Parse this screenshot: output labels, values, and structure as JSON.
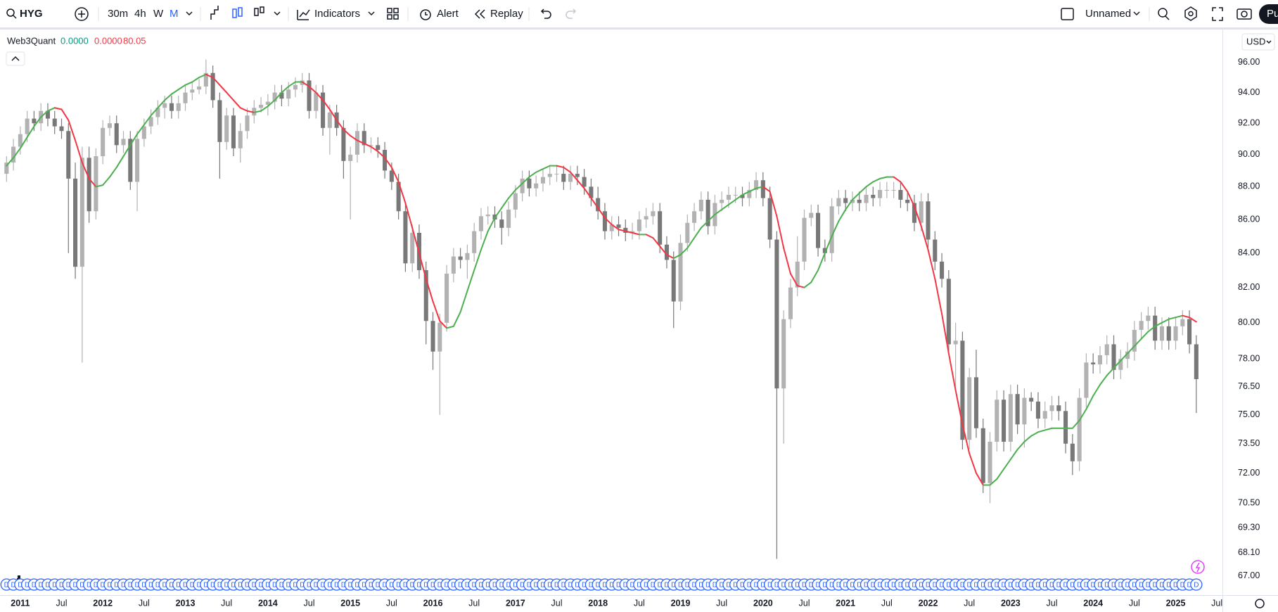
{
  "toolbar": {
    "symbol": "HYG",
    "intervals": [
      "30m",
      "4h",
      "W",
      "M"
    ],
    "indicators": "Indicators",
    "alert": "Alert",
    "replay": "Replay",
    "layout": "Unnamed",
    "publish": "Pu"
  },
  "currency": "USD",
  "chart_data": {
    "type": "candlestick",
    "log_scale": true,
    "up_color": "#b2b2b2",
    "down_color": "#787878",
    "ylim": [
      66.1,
      98.05
    ],
    "yticks": [
      {
        "value": 96,
        "label": "96.00"
      },
      {
        "value": 94,
        "label": "94.00"
      },
      {
        "value": 92,
        "label": "92.00"
      },
      {
        "value": 90,
        "label": "90.00"
      },
      {
        "value": 88,
        "label": "88.00"
      },
      {
        "value": 86,
        "label": "86.00"
      },
      {
        "value": 84,
        "label": "84.00"
      },
      {
        "value": 82,
        "label": "82.00"
      },
      {
        "value": 80,
        "label": "80.00"
      },
      {
        "value": 78,
        "label": "78.00"
      },
      {
        "value": 76.5,
        "label": "76.50"
      },
      {
        "value": 75,
        "label": "75.00"
      },
      {
        "value": 73.5,
        "label": "73.50"
      },
      {
        "value": 72,
        "label": "72.00"
      },
      {
        "value": 70.5,
        "label": "70.50"
      },
      {
        "value": 69.3,
        "label": "69.30"
      },
      {
        "value": 68.1,
        "label": "68.10"
      },
      {
        "value": 67,
        "label": "67.00"
      }
    ],
    "xlim": [
      -0.95,
      176.8
    ],
    "xticks": [
      {
        "value": 2,
        "label": "2011"
      },
      {
        "value": 8,
        "label": "Jul"
      },
      {
        "value": 14,
        "label": "2012"
      },
      {
        "value": 20,
        "label": "Jul"
      },
      {
        "value": 26,
        "label": "2013"
      },
      {
        "value": 32,
        "label": "Jul"
      },
      {
        "value": 38,
        "label": "2014"
      },
      {
        "value": 44,
        "label": "Jul"
      },
      {
        "value": 50,
        "label": "2015"
      },
      {
        "value": 56,
        "label": "Jul"
      },
      {
        "value": 62,
        "label": "2016"
      },
      {
        "value": 68,
        "label": "Jul"
      },
      {
        "value": 74,
        "label": "2017"
      },
      {
        "value": 80,
        "label": "Jul"
      },
      {
        "value": 86,
        "label": "2018"
      },
      {
        "value": 92,
        "label": "Jul"
      },
      {
        "value": 98,
        "label": "2019"
      },
      {
        "value": 104,
        "label": "Jul"
      },
      {
        "value": 110,
        "label": "2020"
      },
      {
        "value": 116,
        "label": "Jul"
      },
      {
        "value": 122,
        "label": "2021"
      },
      {
        "value": 128,
        "label": "Jul"
      },
      {
        "value": 134,
        "label": "2022"
      },
      {
        "value": 140,
        "label": "Jul"
      },
      {
        "value": 146,
        "label": "2023"
      },
      {
        "value": 152,
        "label": "Jul"
      },
      {
        "value": 158,
        "label": "2024"
      },
      {
        "value": 164,
        "label": "Jul"
      },
      {
        "value": 170,
        "label": "2025"
      },
      {
        "value": 176,
        "label": "Jul"
      }
    ],
    "candles": [
      [
        88.8,
        89.9,
        88.3,
        89.5
      ],
      [
        89.5,
        91.0,
        89.0,
        90.5
      ],
      [
        90.5,
        91.8,
        90.0,
        91.3
      ],
      [
        91.3,
        92.8,
        90.8,
        92.3
      ],
      [
        92.3,
        92.8,
        91.5,
        92.0
      ],
      [
        92.0,
        93.3,
        91.5,
        92.8
      ],
      [
        92.8,
        93.3,
        91.8,
        92.3
      ],
      [
        92.3,
        92.8,
        91.3,
        91.8
      ],
      [
        91.8,
        92.3,
        91.0,
        91.5
      ],
      [
        91.5,
        92.0,
        84.0,
        88.5
      ],
      [
        88.5,
        89.5,
        82.5,
        83.2
      ],
      [
        83.2,
        90.5,
        77.8,
        89.8
      ],
      [
        89.8,
        90.5,
        85.8,
        86.5
      ],
      [
        86.5,
        90.4,
        86.0,
        89.9
      ],
      [
        89.9,
        92.2,
        89.4,
        91.7
      ],
      [
        91.7,
        92.5,
        91.2,
        92.0
      ],
      [
        92.0,
        92.5,
        90.1,
        90.6
      ],
      [
        90.6,
        91.5,
        90.1,
        91.0
      ],
      [
        91.0,
        91.5,
        87.8,
        88.3
      ],
      [
        88.3,
        91.5,
        86.5,
        91.0
      ],
      [
        91.0,
        92.3,
        90.5,
        91.8
      ],
      [
        91.8,
        92.9,
        91.3,
        92.4
      ],
      [
        92.4,
        93.5,
        91.9,
        93.0
      ],
      [
        93.0,
        93.8,
        92.3,
        93.3
      ],
      [
        93.3,
        93.8,
        92.3,
        92.8
      ],
      [
        92.8,
        93.8,
        92.3,
        93.3
      ],
      [
        93.3,
        94.5,
        92.8,
        94.0
      ],
      [
        94.0,
        94.7,
        93.5,
        94.2
      ],
      [
        94.2,
        94.9,
        93.9,
        94.4
      ],
      [
        94.4,
        96.2,
        93.9,
        95.3
      ],
      [
        95.3,
        95.8,
        93.0,
        93.5
      ],
      [
        93.5,
        94.0,
        88.5,
        90.8
      ],
      [
        90.8,
        93.0,
        90.3,
        92.5
      ],
      [
        92.5,
        93.0,
        89.9,
        90.4
      ],
      [
        90.4,
        92.0,
        89.5,
        91.5
      ],
      [
        91.5,
        93.0,
        91.0,
        92.5
      ],
      [
        92.5,
        93.5,
        92.0,
        93.0
      ],
      [
        93.0,
        93.7,
        92.7,
        93.2
      ],
      [
        93.2,
        93.9,
        92.5,
        93.4
      ],
      [
        93.4,
        94.5,
        92.9,
        94.0
      ],
      [
        94.0,
        94.5,
        93.1,
        93.6
      ],
      [
        93.6,
        94.7,
        93.1,
        94.2
      ],
      [
        94.2,
        95.0,
        93.7,
        94.5
      ],
      [
        94.5,
        95.3,
        94.0,
        94.8
      ],
      [
        94.8,
        95.3,
        92.3,
        92.8
      ],
      [
        92.8,
        94.5,
        92.3,
        94.0
      ],
      [
        94.0,
        94.5,
        91.2,
        91.7
      ],
      [
        91.7,
        93.2,
        90.0,
        92.7
      ],
      [
        92.7,
        93.2,
        91.2,
        91.7
      ],
      [
        91.7,
        92.2,
        88.5,
        89.6
      ],
      [
        89.6,
        90.5,
        86.0,
        90.0
      ],
      [
        90.0,
        92.0,
        89.5,
        91.5
      ],
      [
        91.5,
        92.0,
        90.1,
        90.6
      ],
      [
        90.6,
        91.1,
        90.1,
        90.6
      ],
      [
        90.6,
        91.1,
        89.8,
        90.3
      ],
      [
        90.3,
        90.8,
        88.5,
        89.0
      ],
      [
        89.0,
        89.5,
        87.8,
        88.3
      ],
      [
        88.3,
        88.8,
        86.0,
        86.5
      ],
      [
        86.5,
        87.0,
        82.9,
        83.4
      ],
      [
        83.4,
        85.7,
        82.9,
        85.2
      ],
      [
        85.2,
        85.7,
        82.5,
        83.0
      ],
      [
        83.0,
        83.5,
        78.8,
        80.1
      ],
      [
        80.1,
        80.6,
        77.4,
        78.4
      ],
      [
        78.4,
        80.5,
        75.0,
        80.0
      ],
      [
        80.0,
        83.3,
        79.5,
        82.8
      ],
      [
        82.8,
        84.3,
        82.3,
        83.8
      ],
      [
        83.8,
        84.3,
        83.1,
        83.6
      ],
      [
        83.6,
        84.5,
        82.5,
        84.0
      ],
      [
        84.0,
        85.8,
        83.5,
        85.3
      ],
      [
        85.3,
        86.7,
        84.8,
        86.2
      ],
      [
        86.2,
        86.8,
        85.7,
        86.3
      ],
      [
        86.3,
        86.8,
        85.5,
        86.0
      ],
      [
        86.0,
        86.5,
        84.5,
        85.5
      ],
      [
        85.5,
        87.1,
        85.0,
        86.6
      ],
      [
        86.6,
        88.1,
        86.1,
        87.6
      ],
      [
        87.6,
        89.0,
        87.1,
        88.5
      ],
      [
        88.5,
        89.0,
        87.4,
        87.9
      ],
      [
        87.9,
        88.7,
        87.4,
        88.2
      ],
      [
        88.2,
        89.1,
        87.7,
        88.6
      ],
      [
        88.6,
        89.3,
        88.1,
        88.8
      ],
      [
        88.8,
        89.3,
        88.3,
        88.8
      ],
      [
        88.8,
        89.3,
        87.8,
        88.3
      ],
      [
        88.3,
        89.3,
        87.8,
        88.8
      ],
      [
        88.8,
        89.3,
        88.1,
        88.6
      ],
      [
        88.6,
        89.1,
        87.5,
        88.0
      ],
      [
        88.0,
        88.5,
        86.8,
        87.3
      ],
      [
        87.3,
        88.0,
        86.0,
        86.5
      ],
      [
        86.5,
        87.0,
        84.8,
        85.3
      ],
      [
        85.3,
        86.2,
        84.8,
        85.7
      ],
      [
        85.7,
        86.2,
        85.0,
        85.5
      ],
      [
        85.5,
        86.0,
        84.7,
        85.2
      ],
      [
        85.2,
        85.8,
        84.8,
        85.3
      ],
      [
        85.3,
        86.5,
        84.8,
        86.0
      ],
      [
        86.0,
        86.7,
        85.5,
        86.2
      ],
      [
        86.2,
        87.0,
        85.7,
        86.5
      ],
      [
        86.5,
        87.0,
        84.0,
        84.5
      ],
      [
        84.5,
        85.0,
        83.1,
        83.6
      ],
      [
        83.6,
        84.1,
        79.7,
        81.2
      ],
      [
        81.2,
        85.1,
        80.7,
        84.6
      ],
      [
        84.6,
        86.3,
        84.1,
        85.8
      ],
      [
        85.8,
        87.0,
        85.3,
        86.5
      ],
      [
        86.5,
        87.7,
        86.0,
        87.2
      ],
      [
        87.2,
        87.7,
        85.1,
        85.6
      ],
      [
        85.6,
        87.5,
        85.1,
        87.0
      ],
      [
        87.0,
        87.7,
        86.5,
        87.2
      ],
      [
        87.2,
        88.0,
        86.7,
        87.5
      ],
      [
        87.5,
        88.0,
        87.0,
        87.5
      ],
      [
        87.5,
        88.0,
        86.8,
        87.3
      ],
      [
        87.3,
        88.3,
        86.8,
        87.8
      ],
      [
        87.8,
        88.9,
        87.3,
        88.4
      ],
      [
        88.4,
        88.9,
        86.8,
        87.3
      ],
      [
        87.3,
        88.0,
        84.3,
        84.8
      ],
      [
        84.8,
        85.3,
        67.8,
        76.4
      ],
      [
        76.4,
        80.7,
        73.5,
        80.2
      ],
      [
        80.2,
        82.5,
        79.7,
        82.0
      ],
      [
        82.0,
        85.0,
        81.5,
        83.5
      ],
      [
        83.5,
        86.6,
        83.0,
        86.1
      ],
      [
        86.1,
        86.9,
        85.6,
        86.4
      ],
      [
        86.4,
        86.9,
        83.8,
        84.3
      ],
      [
        84.3,
        84.8,
        83.5,
        84.0
      ],
      [
        84.0,
        87.3,
        83.5,
        86.8
      ],
      [
        86.8,
        87.8,
        86.3,
        87.3
      ],
      [
        87.3,
        87.8,
        86.5,
        87.0
      ],
      [
        87.0,
        87.7,
        86.5,
        87.2
      ],
      [
        87.2,
        87.7,
        86.5,
        87.0
      ],
      [
        87.0,
        88.0,
        86.5,
        87.5
      ],
      [
        87.5,
        88.0,
        86.8,
        87.3
      ],
      [
        87.3,
        88.3,
        86.8,
        87.8
      ],
      [
        87.8,
        88.3,
        87.3,
        87.8
      ],
      [
        87.8,
        88.3,
        87.3,
        87.8
      ],
      [
        87.8,
        88.3,
        86.7,
        87.2
      ],
      [
        87.2,
        87.7,
        86.5,
        87.0
      ],
      [
        87.0,
        87.5,
        85.3,
        85.8
      ],
      [
        85.8,
        87.6,
        85.3,
        87.1
      ],
      [
        87.1,
        87.6,
        84.3,
        84.8
      ],
      [
        84.8,
        85.3,
        83.0,
        83.5
      ],
      [
        83.5,
        84.0,
        82.0,
        82.5
      ],
      [
        82.5,
        83.0,
        78.3,
        78.8
      ],
      [
        78.8,
        80.0,
        76.5,
        79.0
      ],
      [
        79.0,
        79.5,
        73.2,
        73.7
      ],
      [
        73.7,
        77.5,
        73.2,
        77.0
      ],
      [
        77.0,
        78.5,
        73.8,
        74.3
      ],
      [
        74.3,
        74.8,
        71.0,
        71.5
      ],
      [
        71.5,
        74.1,
        70.5,
        73.6
      ],
      [
        73.6,
        76.3,
        73.1,
        75.8
      ],
      [
        75.8,
        76.3,
        73.1,
        73.6
      ],
      [
        73.6,
        76.6,
        73.1,
        76.1
      ],
      [
        76.1,
        76.6,
        74.0,
        74.5
      ],
      [
        74.5,
        76.4,
        73.3,
        75.9
      ],
      [
        75.9,
        76.2,
        75.2,
        75.7
      ],
      [
        75.7,
        76.2,
        74.3,
        74.8
      ],
      [
        74.8,
        75.7,
        74.3,
        75.2
      ],
      [
        75.2,
        76.0,
        74.7,
        75.5
      ],
      [
        75.5,
        76.0,
        74.7,
        75.2
      ],
      [
        75.2,
        75.7,
        73.0,
        73.5
      ],
      [
        73.5,
        74.0,
        71.9,
        72.6
      ],
      [
        72.6,
        76.4,
        72.1,
        75.9
      ],
      [
        75.9,
        78.3,
        75.4,
        77.8
      ],
      [
        77.8,
        78.3,
        77.2,
        77.7
      ],
      [
        77.7,
        78.7,
        77.2,
        78.2
      ],
      [
        78.2,
        79.3,
        77.7,
        78.8
      ],
      [
        78.8,
        79.3,
        76.9,
        77.4
      ],
      [
        77.4,
        78.5,
        76.9,
        78.0
      ],
      [
        78.0,
        78.9,
        77.5,
        78.4
      ],
      [
        78.4,
        80.1,
        77.9,
        79.6
      ],
      [
        79.6,
        80.6,
        79.1,
        80.1
      ],
      [
        80.1,
        80.9,
        79.6,
        80.4
      ],
      [
        80.4,
        80.9,
        78.5,
        79.0
      ],
      [
        79.0,
        80.3,
        78.5,
        79.8
      ],
      [
        79.8,
        80.3,
        78.5,
        79.0
      ],
      [
        79.0,
        80.3,
        78.5,
        79.8
      ],
      [
        79.8,
        80.7,
        79.3,
        80.2
      ],
      [
        80.2,
        80.7,
        78.3,
        78.8
      ],
      [
        78.8,
        79.3,
        75.1,
        76.9
      ]
    ],
    "indicator": {
      "name": "Web3Quant",
      "legend_values": [
        "0.0000",
        "0.0000",
        "80.05"
      ],
      "legend_colors": [
        "#089981",
        "#f23645",
        "#f23645"
      ],
      "up_color": "#4caf50",
      "down_color": "#f23645",
      "values": [
        89.3,
        89.8,
        90.4,
        91.1,
        91.8,
        92.4,
        92.8,
        93.0,
        92.9,
        92.2,
        90.9,
        89.5,
        88.5,
        88.0,
        88.1,
        88.6,
        89.2,
        89.9,
        90.6,
        91.3,
        91.9,
        92.5,
        93.0,
        93.5,
        93.9,
        94.2,
        94.5,
        94.7,
        95.0,
        95.2,
        95.0,
        94.5,
        94.0,
        93.5,
        93.0,
        92.8,
        92.7,
        92.8,
        93.1,
        93.5,
        94.0,
        94.4,
        94.7,
        94.7,
        94.4,
        94.0,
        93.5,
        92.9,
        92.2,
        91.6,
        91.2,
        90.9,
        90.7,
        90.5,
        90.2,
        89.8,
        89.2,
        88.3,
        87.0,
        85.5,
        84.0,
        82.5,
        81.2,
        80.1,
        79.7,
        79.8,
        80.6,
        81.8,
        83.0,
        84.2,
        85.3,
        86.1,
        86.7,
        87.3,
        87.8,
        88.2,
        88.6,
        88.9,
        89.1,
        89.3,
        89.3,
        89.2,
        88.9,
        88.4,
        87.9,
        87.3,
        86.7,
        86.1,
        85.7,
        85.4,
        85.3,
        85.2,
        85.1,
        85.1,
        84.9,
        84.4,
        83.9,
        83.7,
        83.9,
        84.3,
        84.9,
        85.5,
        85.9,
        86.3,
        86.6,
        86.9,
        87.2,
        87.5,
        87.7,
        87.9,
        88.0,
        87.7,
        86.2,
        84.3,
        82.8,
        82.1,
        82.0,
        82.3,
        83.0,
        84.0,
        85.0,
        85.9,
        86.6,
        87.2,
        87.6,
        88.0,
        88.3,
        88.5,
        88.6,
        88.6,
        88.3,
        87.7,
        86.8,
        85.6,
        84.2,
        82.5,
        80.5,
        78.3,
        76.3,
        74.5,
        73.0,
        72.0,
        71.4,
        71.4,
        71.7,
        72.2,
        72.7,
        73.2,
        73.6,
        73.9,
        74.1,
        74.2,
        74.3,
        74.3,
        74.3,
        74.3,
        74.7,
        75.3,
        76.0,
        76.6,
        77.1,
        77.5,
        77.9,
        78.3,
        78.7,
        79.1,
        79.5,
        79.8,
        80.0,
        80.2,
        80.3,
        80.4,
        80.3,
        80.05
      ]
    },
    "dividend_marker": "D"
  }
}
